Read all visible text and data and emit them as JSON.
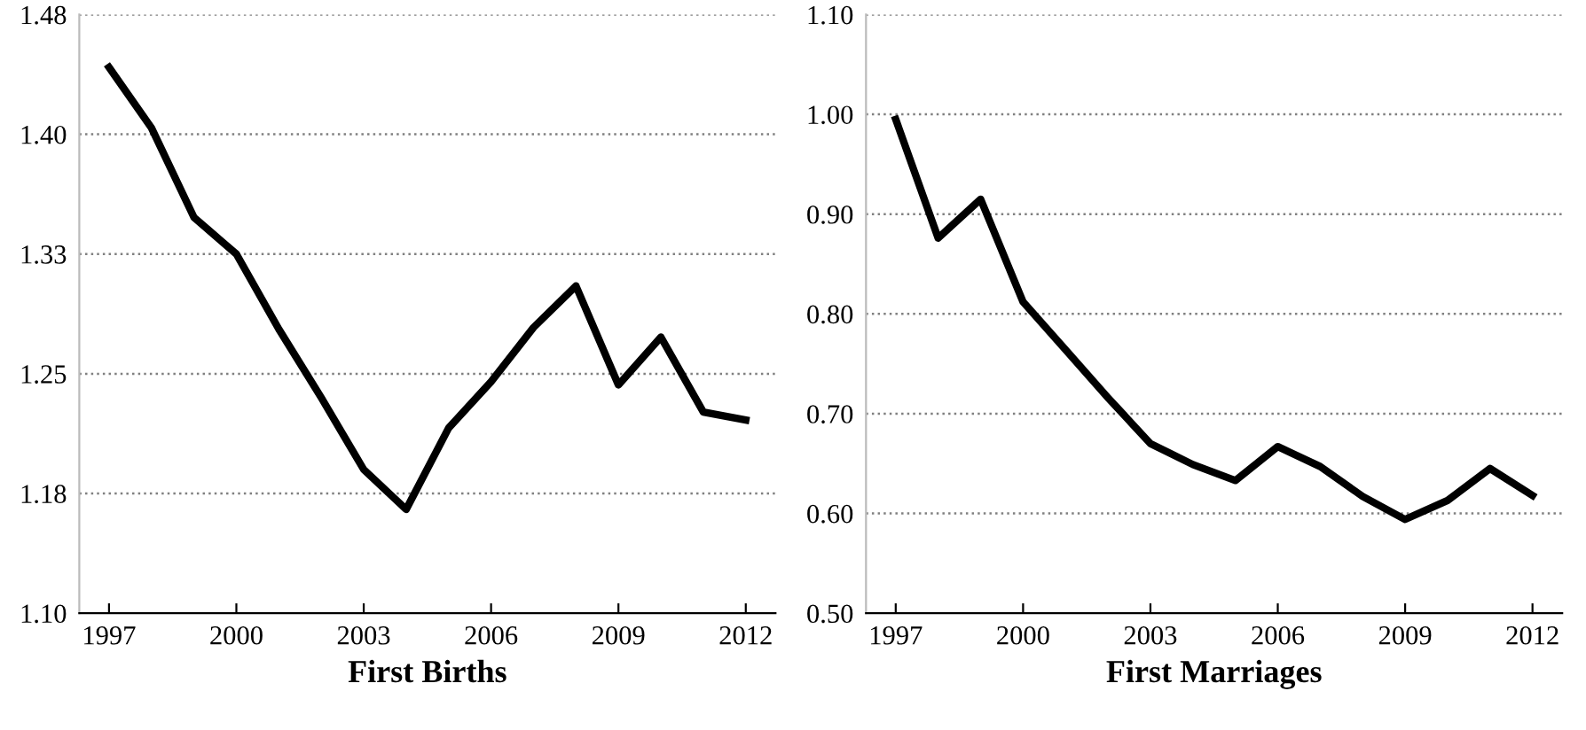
{
  "chart_data": [
    {
      "type": "line",
      "xlabel": "First Births",
      "categories": [
        "1997",
        null,
        null,
        "2000",
        null,
        null,
        "2003",
        null,
        null,
        "2006",
        null,
        null,
        "2009",
        null,
        null,
        "2012"
      ],
      "series": [
        {
          "color": "#000000",
          "values": [
            1.442,
            1.404,
            1.348,
            1.325,
            1.278,
            1.235,
            1.19,
            1.165,
            1.216,
            1.245,
            1.279,
            1.305,
            1.243,
            1.273,
            1.226,
            1.221
          ]
        }
      ],
      "ylim": [
        1.1,
        1.475
      ],
      "yticks": [
        {
          "value": 1.1,
          "label": "1.10"
        },
        {
          "value": 1.175,
          "label": "1.18"
        },
        {
          "value": 1.25,
          "label": "1.25"
        },
        {
          "value": 1.325,
          "label": "1.33"
        },
        {
          "value": 1.4,
          "label": "1.40"
        },
        {
          "value": 1.475,
          "label": "1.48"
        }
      ],
      "grid": "y",
      "line_style": "solid",
      "marker": "none"
    },
    {
      "type": "line",
      "xlabel": "First Marriages",
      "categories": [
        "1997",
        null,
        null,
        "2000",
        null,
        null,
        "2003",
        null,
        null,
        "2006",
        null,
        null,
        "2009",
        null,
        null,
        "2012"
      ],
      "series": [
        {
          "color": "#000000",
          "values": [
            0.995,
            0.876,
            0.915,
            0.812,
            0.764,
            0.716,
            0.67,
            0.649,
            0.633,
            0.667,
            0.647,
            0.617,
            0.594,
            0.613,
            0.645,
            0.618
          ]
        }
      ],
      "ylim": [
        0.5,
        1.1
      ],
      "yticks": [
        {
          "value": 0.5,
          "label": "0.50"
        },
        {
          "value": 0.6,
          "label": "0.60"
        },
        {
          "value": 0.7,
          "label": "0.70"
        },
        {
          "value": 0.8,
          "label": "0.80"
        },
        {
          "value": 0.9,
          "label": "0.90"
        },
        {
          "value": 1.0,
          "label": "1.00"
        },
        {
          "value": 1.1,
          "label": "1.10"
        }
      ],
      "grid": "y",
      "line_style": "solid",
      "marker": "none"
    }
  ]
}
